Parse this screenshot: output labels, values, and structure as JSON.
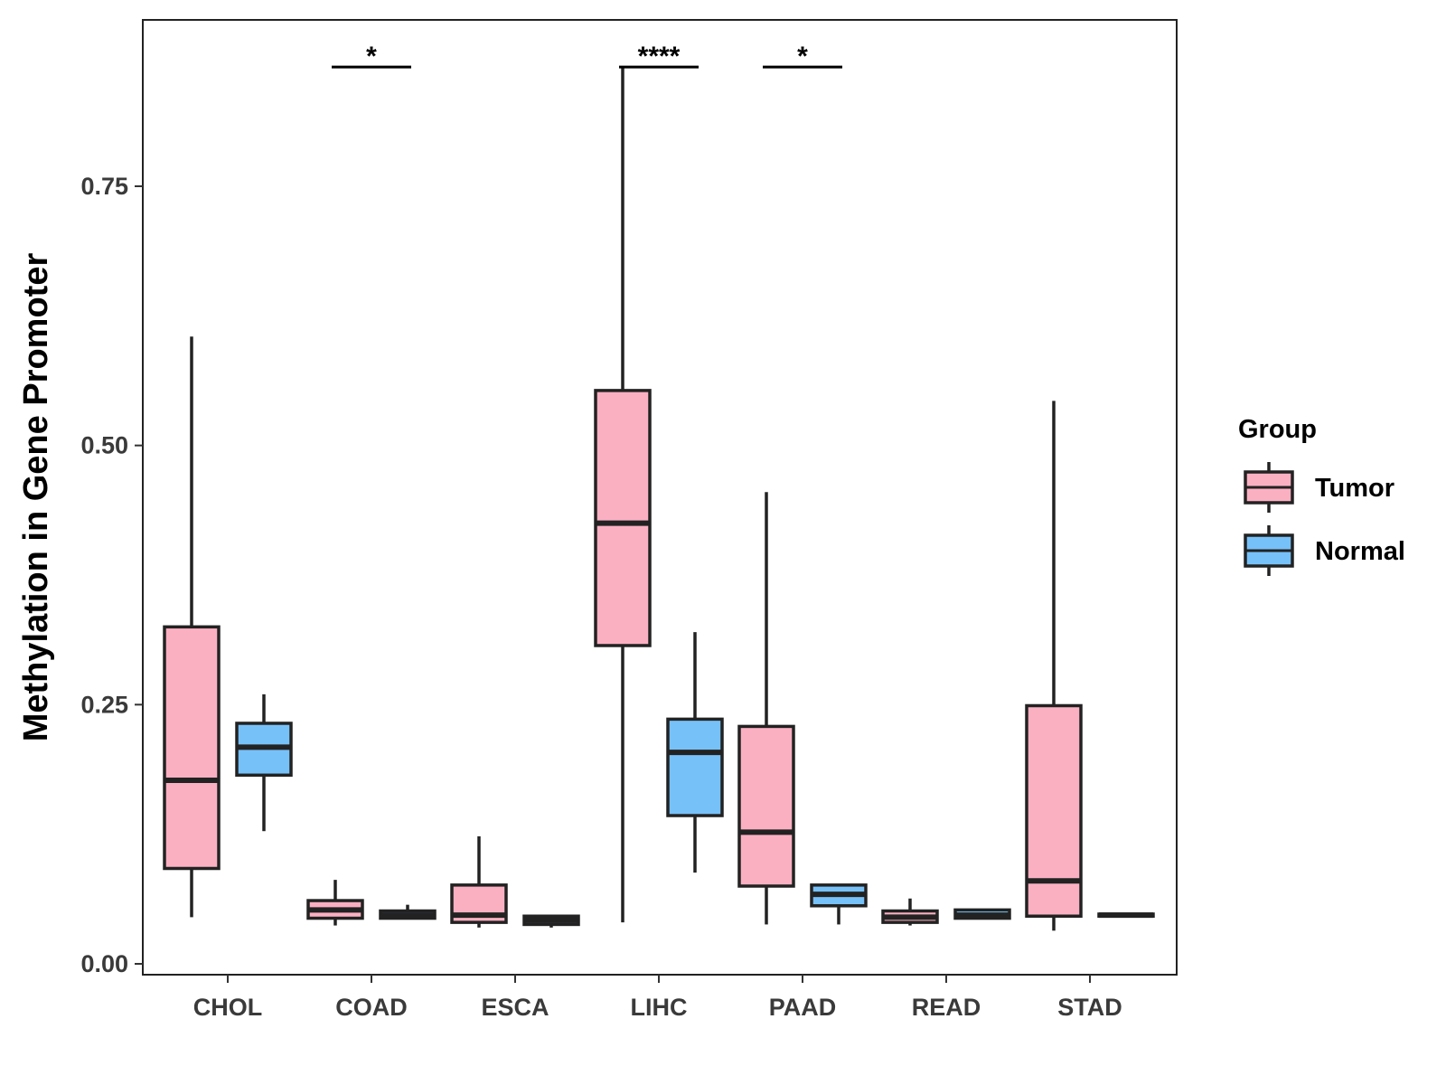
{
  "chart_data": {
    "type": "boxplot",
    "title": "",
    "xlabel": "",
    "ylabel": "Methylation in Gene Promoter",
    "ylim": [
      -0.01,
      0.91
    ],
    "yticks": [
      0.0,
      0.25,
      0.5,
      0.75
    ],
    "ytick_labels": [
      "0.00",
      "0.25",
      "0.50",
      "0.75"
    ],
    "grid": false,
    "categories": [
      "CHOL",
      "COAD",
      "ESCA",
      "LIHC",
      "PAAD",
      "READ",
      "STAD"
    ],
    "legend": {
      "title": "Group",
      "placement": "right",
      "entries": [
        {
          "name": "Tumor",
          "color": "#FBB0C2"
        },
        {
          "name": "Normal",
          "color": "#77C1F9"
        }
      ]
    },
    "series": [
      {
        "name": "Tumor",
        "color": "#FBB0C2",
        "boxes": [
          {
            "category": "CHOL",
            "min": 0.045,
            "q1": 0.092,
            "median": 0.177,
            "q3": 0.325,
            "max": 0.605
          },
          {
            "category": "COAD",
            "min": 0.037,
            "q1": 0.044,
            "median": 0.052,
            "q3": 0.061,
            "max": 0.081
          },
          {
            "category": "ESCA",
            "min": 0.035,
            "q1": 0.04,
            "median": 0.047,
            "q3": 0.076,
            "max": 0.123
          },
          {
            "category": "LIHC",
            "min": 0.04,
            "q1": 0.307,
            "median": 0.425,
            "q3": 0.553,
            "max": 0.865
          },
          {
            "category": "PAAD",
            "min": 0.038,
            "q1": 0.075,
            "median": 0.127,
            "q3": 0.229,
            "max": 0.455
          },
          {
            "category": "READ",
            "min": 0.037,
            "q1": 0.04,
            "median": 0.045,
            "q3": 0.051,
            "max": 0.063
          },
          {
            "category": "STAD",
            "min": 0.032,
            "q1": 0.046,
            "median": 0.08,
            "q3": 0.249,
            "max": 0.543
          }
        ]
      },
      {
        "name": "Normal",
        "color": "#77C1F9",
        "boxes": [
          {
            "category": "CHOL",
            "min": 0.128,
            "q1": 0.182,
            "median": 0.209,
            "q3": 0.232,
            "max": 0.26
          },
          {
            "category": "COAD",
            "min": 0.043,
            "q1": 0.044,
            "median": 0.047,
            "q3": 0.051,
            "max": 0.057
          },
          {
            "category": "ESCA",
            "min": 0.035,
            "q1": 0.038,
            "median": 0.042,
            "q3": 0.046,
            "max": 0.047
          },
          {
            "category": "LIHC",
            "min": 0.088,
            "q1": 0.143,
            "median": 0.204,
            "q3": 0.236,
            "max": 0.32
          },
          {
            "category": "PAAD",
            "min": 0.038,
            "q1": 0.056,
            "median": 0.067,
            "q3": 0.076,
            "max": 0.077
          },
          {
            "category": "READ",
            "min": 0.043,
            "q1": 0.044,
            "median": 0.047,
            "q3": 0.052,
            "max": 0.053
          },
          {
            "category": "STAD",
            "min": 0.045,
            "q1": 0.046,
            "median": 0.047,
            "q3": 0.048,
            "max": 0.049
          }
        ]
      }
    ],
    "annotations": [
      {
        "category": "COAD",
        "label": "*",
        "y": 0.865
      },
      {
        "category": "LIHC",
        "label": "****",
        "y": 0.865
      },
      {
        "category": "PAAD",
        "label": "*",
        "y": 0.865
      }
    ]
  }
}
